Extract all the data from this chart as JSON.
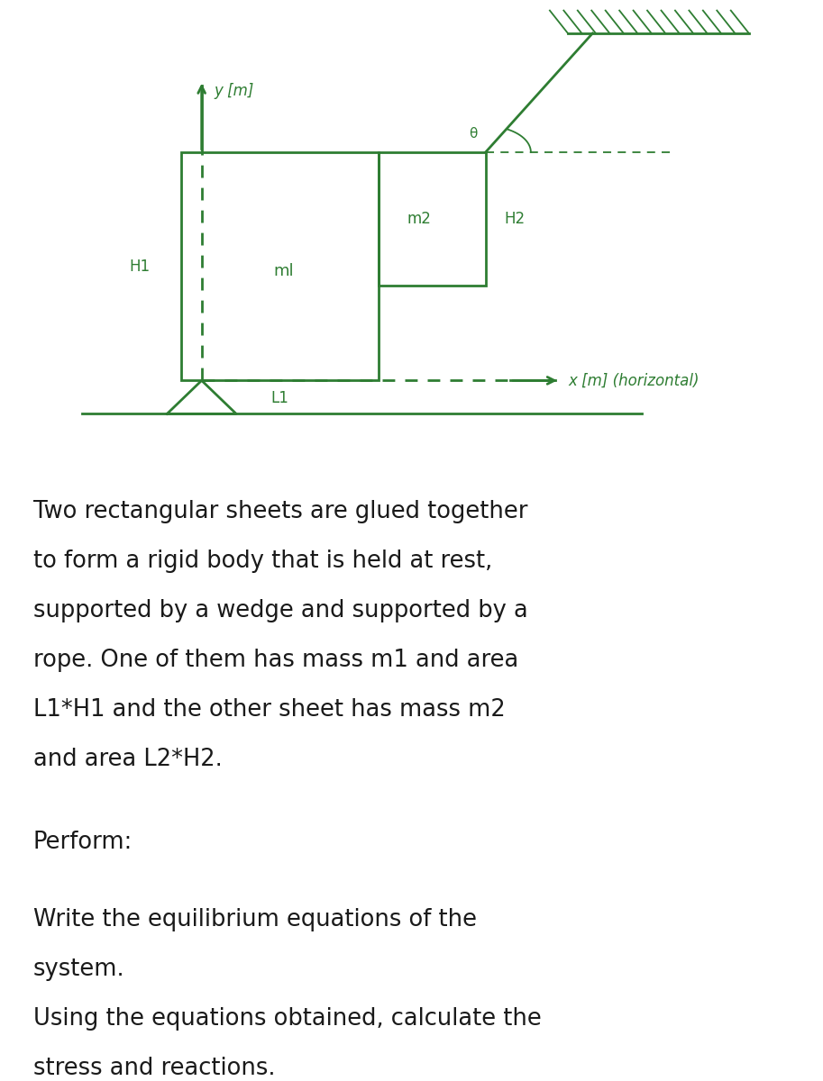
{
  "green_color": "#2e7d32",
  "bg_color": "#ffffff",
  "text_color": "#1a1a1a",
  "description_lines": [
    "Two rectangular sheets are glued together",
    "to form a rigid body that is held at rest,",
    "supported by a wedge and supported by a",
    "rope. One of them has mass m1 and area",
    "L1*H1 and the other sheet has mass m2",
    "and area L2*H2."
  ],
  "perform_line": "Perform:",
  "task_lines": [
    "Write the equilibrium equations of the",
    "system.",
    "Using the equations obtained, calculate the",
    "stress and reactions."
  ]
}
